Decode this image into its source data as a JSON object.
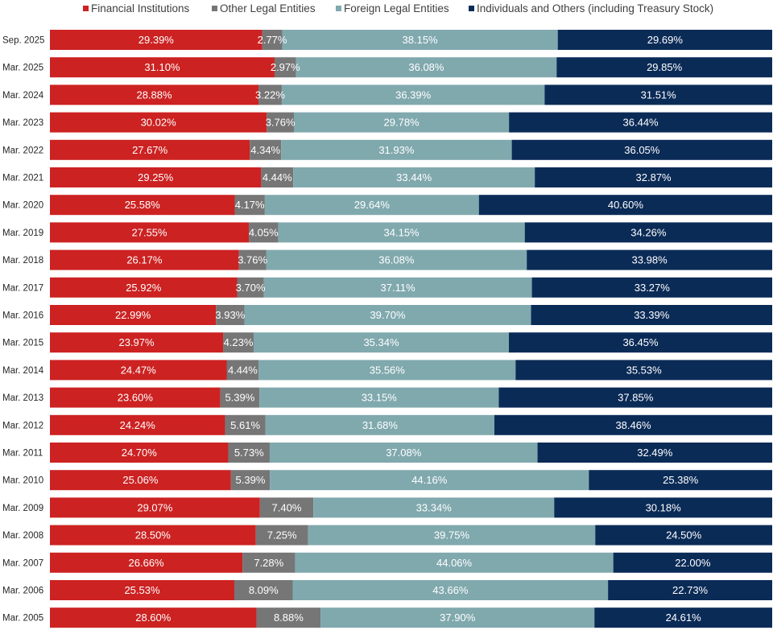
{
  "chart_data": {
    "type": "bar",
    "orientation": "horizontal",
    "stacked": true,
    "percent_stacked": true,
    "title": "",
    "xlabel": "",
    "ylabel": "",
    "xlim": [
      0,
      100
    ],
    "grid": false,
    "legend_position": "top",
    "categories": [
      "Sep. 2025",
      "Mar. 2025",
      "Mar. 2024",
      "Mar. 2023",
      "Mar. 2022",
      "Mar. 2021",
      "Mar. 2020",
      "Mar. 2019",
      "Mar. 2018",
      "Mar. 2017",
      "Mar. 2016",
      "Mar. 2015",
      "Mar. 2014",
      "Mar. 2013",
      "Mar. 2012",
      "Mar. 2011",
      "Mar. 2010",
      "Mar. 2009",
      "Mar. 2008",
      "Mar. 2007",
      "Mar. 2006",
      "Mar. 2005"
    ],
    "series": [
      {
        "name": "Financial Institutions",
        "color": "#cc2222",
        "values": [
          29.39,
          31.1,
          28.88,
          30.02,
          27.67,
          29.25,
          25.58,
          27.55,
          26.17,
          25.92,
          22.99,
          23.97,
          24.47,
          23.6,
          24.24,
          24.7,
          25.06,
          29.07,
          28.5,
          26.66,
          25.53,
          28.6
        ],
        "labels": [
          "29.39%",
          "31.10%",
          "28.88%",
          "30.02%",
          "27.67%",
          "29.25%",
          "25.58%",
          "27.55%",
          "26.17%",
          "25.92%",
          "22.99%",
          "23.97%",
          "24.47%",
          "23.60%",
          "24.24%",
          "24.70%",
          "25.06%",
          "29.07%",
          "28.50%",
          "26.66%",
          "25.53%",
          "28.60%"
        ]
      },
      {
        "name": "Other Legal Entities",
        "color": "#767676",
        "values": [
          2.77,
          2.97,
          3.22,
          3.76,
          4.34,
          4.44,
          4.17,
          4.05,
          3.76,
          3.7,
          3.93,
          4.23,
          4.44,
          5.39,
          5.61,
          5.73,
          5.39,
          7.4,
          7.25,
          7.28,
          8.09,
          8.88
        ],
        "labels": [
          "2.77%",
          "2.97%",
          "3.22%",
          "3.76%",
          "4.34%",
          "4.44%",
          "4.17%",
          "4.05%",
          "3.76%",
          "3.70%",
          "3.93%",
          "4.23%",
          "4.44%",
          "5.39%",
          "5.61%",
          "5.73%",
          "5.39%",
          "7.40%",
          "7.25%",
          "7.28%",
          "8.09%",
          "8.88%"
        ]
      },
      {
        "name": "Foreign Legal Entities",
        "color": "#80a9ae",
        "values": [
          38.15,
          36.08,
          36.39,
          29.78,
          31.93,
          33.44,
          29.64,
          34.15,
          36.08,
          37.11,
          39.7,
          35.34,
          35.56,
          33.15,
          31.68,
          37.08,
          44.16,
          33.34,
          39.75,
          44.06,
          43.66,
          37.9
        ],
        "labels": [
          "38.15%",
          "36.08%",
          "36.39%",
          "29.78%",
          "31.93%",
          "33.44%",
          "29.64%",
          "34.15%",
          "36.08%",
          "37.11%",
          "39.70%",
          "35.34%",
          "35.56%",
          "33.15%",
          "31.68%",
          "37.08%",
          "44.16%",
          "33.34%",
          "39.75%",
          "44.06%",
          "43.66%",
          "37.90%"
        ]
      },
      {
        "name": "Individuals and Others (including Treasury Stock)",
        "color": "#0b2b57",
        "values": [
          29.69,
          29.85,
          31.51,
          36.44,
          36.05,
          32.87,
          40.6,
          34.26,
          33.98,
          33.27,
          33.39,
          36.45,
          35.53,
          37.85,
          38.46,
          32.49,
          25.38,
          30.18,
          24.5,
          22.0,
          22.73,
          24.61
        ],
        "labels": [
          "29.69%",
          "29.85%",
          "31.51%",
          "36.44%",
          "36.05%",
          "32.87%",
          "40.60%",
          "34.26%",
          "33.98%",
          "33.27%",
          "33.39%",
          "36.45%",
          "35.53%",
          "37.85%",
          "38.46%",
          "32.49%",
          "25.38%",
          "30.18%",
          "24.50%",
          "22.00%",
          "22.73%",
          "24.61%"
        ]
      }
    ]
  }
}
